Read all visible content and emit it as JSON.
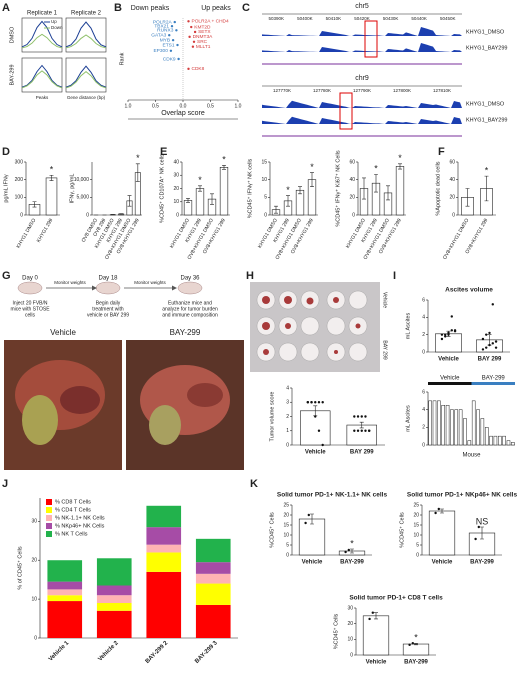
{
  "panel_labels": [
    "A",
    "B",
    "C",
    "D",
    "E",
    "F",
    "G",
    "H",
    "I",
    "J",
    "K"
  ],
  "genome": [
    {
      "chrom": "chr5",
      "coords": [
        "50390K",
        "50400K",
        "50410K",
        "50420K",
        "50430K",
        "50440K",
        "50450K"
      ],
      "samples": [
        "KHYG1_DMSO",
        "KHYG1_BAY299"
      ]
    },
    {
      "chrom": "chr9",
      "coords": [
        "127770K",
        "127780K",
        "127790K",
        "127800K",
        "127810K"
      ],
      "samples": [
        "KHYG1_DMSO",
        "KHYG1_BAY299"
      ]
    }
  ],
  "timeline": {
    "days": [
      "Day 0",
      "Day 18",
      "Day 36"
    ],
    "steps": [
      "Monitor weights",
      "Monitor weights"
    ],
    "notes": [
      [
        "Inject 20 FVB/N",
        "mice with STOSE",
        "cells"
      ],
      [
        "Begin daily",
        "treatment with",
        "vehicle or BAY 299"
      ],
      [
        "Euthanize mice and",
        "analyze for tumor burden",
        "and immune composition"
      ]
    ],
    "photos": [
      "Vehicle",
      "BAY-299"
    ]
  },
  "plate": {
    "labels": [
      "Vehicle",
      "BAY 299"
    ]
  },
  "chart_data": [
    {
      "type": "profile",
      "title": "Replicate 1",
      "row_label": "DMSO",
      "x": [
        -2,
        -1.5,
        -1,
        -0.5,
        0,
        0.5,
        1,
        1.5,
        2
      ],
      "xlim": [
        -2,
        2
      ],
      "ylim": [
        0,
        1
      ],
      "series": [
        {
          "name": "Up",
          "color": "#1c3f94",
          "values": [
            0.15,
            0.22,
            0.4,
            0.72,
            0.9,
            0.72,
            0.4,
            0.22,
            0.15
          ]
        },
        {
          "name": "Down",
          "color": "#8fc06a",
          "values": [
            0.12,
            0.16,
            0.26,
            0.42,
            0.52,
            0.42,
            0.26,
            0.16,
            0.12
          ]
        }
      ]
    },
    {
      "type": "profile",
      "title": "Replicate 2",
      "x": [
        -2,
        -1.5,
        -1,
        -0.5,
        0,
        0.5,
        1,
        1.5,
        2
      ],
      "xlim": [
        -2,
        2
      ],
      "ylim": [
        0,
        1
      ],
      "series": [
        {
          "color": "#1c3f94",
          "values": [
            0.15,
            0.21,
            0.38,
            0.7,
            0.88,
            0.7,
            0.38,
            0.21,
            0.15
          ]
        },
        {
          "color": "#8fc06a",
          "values": [
            0.12,
            0.16,
            0.25,
            0.4,
            0.5,
            0.4,
            0.25,
            0.16,
            0.12
          ]
        }
      ]
    },
    {
      "type": "profile",
      "row_label": "BAY-299",
      "xlabel": "Peaks",
      "x": [
        -2,
        -1.5,
        -1,
        -0.5,
        0,
        0.5,
        1,
        1.5,
        2
      ],
      "xlim": [
        -2,
        2
      ],
      "ylim": [
        0,
        1
      ],
      "series": [
        {
          "color": "#1c3f94",
          "values": [
            0.14,
            0.2,
            0.34,
            0.6,
            0.78,
            0.6,
            0.34,
            0.2,
            0.14
          ]
        },
        {
          "color": "#8fc06a",
          "values": [
            0.12,
            0.18,
            0.3,
            0.5,
            0.62,
            0.5,
            0.3,
            0.18,
            0.12
          ]
        }
      ]
    },
    {
      "type": "profile",
      "xlabel": "Gene distance (bp)",
      "x": [
        -2,
        -1.5,
        -1,
        -0.5,
        0,
        0.5,
        1,
        1.5,
        2
      ],
      "xlim": [
        -2,
        2
      ],
      "ylim": [
        0,
        1
      ],
      "series": [
        {
          "color": "#1c3f94",
          "values": [
            0.14,
            0.2,
            0.33,
            0.58,
            0.76,
            0.58,
            0.33,
            0.2,
            0.14
          ]
        },
        {
          "color": "#8fc06a",
          "values": [
            0.12,
            0.17,
            0.29,
            0.48,
            0.6,
            0.48,
            0.29,
            0.17,
            0.12
          ]
        }
      ]
    },
    {
      "type": "scatter-rank",
      "title_left": "Down peaks",
      "title_right": "Up peaks",
      "xlabel": "Overlap score",
      "ylabel": "Rank",
      "xlim": [
        -1,
        1
      ],
      "ylim": [
        100,
        0
      ],
      "xticks": [
        {
          "value": -1,
          "label": "1.0"
        },
        {
          "value": -0.5,
          "label": "0.5"
        },
        {
          "value": 0,
          "label": "0.0"
        },
        {
          "value": 0.5,
          "label": "0.5"
        },
        {
          "value": 1,
          "label": "1.0"
        }
      ],
      "colors": {
        "down": "#3a7fc1",
        "up": "#d43c3c"
      },
      "labels": [
        "POLR2A",
        "TBX21",
        "RUNX3",
        "GATA3",
        "MYB",
        "ETS1",
        "EP300",
        "CDK9",
        "POLR2A + CHD4",
        "KMT2D",
        "SETX",
        "DNMT3A",
        "SRC",
        "MLLT1",
        "CDK8"
      ],
      "x": [
        -0.15,
        -0.2,
        -0.12,
        -0.25,
        -0.18,
        -0.1,
        -0.22,
        -0.08,
        0.1,
        0.15,
        0.22,
        0.12,
        0.2,
        0.18,
        0.1
      ],
      "values": [
        5,
        10,
        15,
        21,
        27,
        33,
        40,
        50,
        4,
        11,
        17,
        23,
        29,
        35,
        62
      ]
    },
    {
      "type": "bar",
      "ylabel": "pg/mL IFNγ",
      "categories": [
        "KHYG1 DMSO",
        "KHYG1 299"
      ],
      "values": [
        60,
        210
      ],
      "errors": [
        15,
        15
      ],
      "color": "#ffffff",
      "ylim": [
        0,
        300
      ],
      "yticks": [
        0,
        100,
        200,
        300
      ],
      "significance": [
        null,
        "*"
      ]
    },
    {
      "type": "bar",
      "ylabel": "IFNγ, pg/mL",
      "categories": [
        "OV8 DMSO",
        "OV8 299",
        "KHYG1 DMSO",
        "KHYG1 299",
        "OV8+KHYG1 DMSO",
        "OV8+KHYG1 299"
      ],
      "values": [
        0,
        0,
        100,
        300,
        4000,
        12000
      ],
      "errors": [
        0,
        0,
        50,
        80,
        1500,
        2500
      ],
      "color": "#ffffff",
      "ylim": [
        0,
        15000
      ],
      "yticks": [
        0,
        {
          "value": 5000,
          "label": "5,000"
        },
        {
          "value": 10000,
          "label": "10,000"
        }
      ],
      "significance": [
        null,
        null,
        null,
        null,
        null,
        "*"
      ]
    },
    {
      "type": "bar",
      "ylabel": "%CD45⁺ CD107A⁺ NK cells",
      "categories": [
        "KHYG1 DMSO",
        "KHYG1 299",
        "OV8+KHYG1 DMSO",
        "OV8+KHYG1 299"
      ],
      "values": [
        11,
        20,
        12,
        36
      ],
      "errors": [
        1.5,
        2,
        4,
        1.5
      ],
      "color": "#ffffff",
      "ylim": [
        0,
        40
      ],
      "yticks": [
        0,
        10,
        20,
        30,
        40
      ],
      "significance": [
        null,
        "*",
        null,
        "*"
      ]
    },
    {
      "type": "bar",
      "ylabel": "%CD45⁺ IFNγ⁺ NK cells",
      "categories": [
        "KHYG1 DMSO",
        "KHYG1 299",
        "OV8+KHYG1 DMSO",
        "OV8+KHYG1 299"
      ],
      "values": [
        1.5,
        4,
        7,
        10
      ],
      "errors": [
        1,
        1.5,
        1,
        2
      ],
      "color": "#ffffff",
      "ylim": [
        0,
        15
      ],
      "yticks": [
        0,
        5,
        10,
        15
      ],
      "significance": [
        null,
        "*",
        null,
        "*"
      ]
    },
    {
      "type": "bar",
      "ylabel": "%CD45⁺ IFNγ⁺ Ki67⁺ NK Cells",
      "categories": [
        "KHYG1 DMSO",
        "KHYG1 299",
        "OV8+KHYG1 DMSO",
        "OV8+KHYG1 299"
      ],
      "values": [
        30,
        36,
        25,
        55
      ],
      "errors": [
        12,
        10,
        8,
        3
      ],
      "color": "#ffffff",
      "ylim": [
        0,
        60
      ],
      "yticks": [
        0,
        20,
        40,
        60
      ],
      "significance": [
        null,
        "*",
        null,
        "*"
      ]
    },
    {
      "type": "bar",
      "ylabel": "%Apoptotic dead cells",
      "categories": [
        "OV8+KHYG1 DMSO",
        "OV8+KHYG1 299"
      ],
      "values": [
        20,
        30
      ],
      "errors": [
        10,
        14
      ],
      "color": "#ffffff",
      "ylim": [
        0,
        60
      ],
      "yticks": [
        0,
        20,
        40,
        60
      ],
      "significance": [
        null,
        "*"
      ]
    },
    {
      "type": "bar",
      "ylabel": "Tumor volume score",
      "categories": [
        "Vehicle",
        "BAY 299"
      ],
      "values": [
        2.4,
        1.4
      ],
      "errors": [
        0.35,
        0.2
      ],
      "color": "#ffffff",
      "ylim": [
        0,
        4
      ],
      "yticks": [
        0,
        1,
        2,
        3,
        4
      ],
      "points": [
        [
          3,
          3,
          3,
          3,
          3,
          3,
          3,
          2,
          1,
          0
        ],
        [
          2,
          2,
          2,
          2,
          1,
          1,
          1,
          1,
          1,
          1
        ]
      ]
    },
    {
      "type": "bar",
      "title": "Ascites volume",
      "ylabel": "mL Ascites",
      "categories": [
        "Vehicle",
        "BAY 299"
      ],
      "values": [
        2.1,
        1.4
      ],
      "errors": [
        0.3,
        0.6
      ],
      "color": "#ffffff",
      "ylim": [
        0,
        6
      ],
      "yticks": [
        0,
        2,
        4,
        6
      ],
      "points": [
        [
          1.5,
          2,
          2,
          2.5,
          2.5,
          2,
          1.8,
          2.2,
          4.1,
          2.4
        ],
        [
          0.3,
          0.5,
          0.8,
          1,
          1.2,
          1.5,
          2,
          2.2,
          5.5,
          0.5
        ]
      ]
    },
    {
      "type": "bar-groups",
      "ylabel": "mL Ascites",
      "xlabel": "Mouse",
      "ylim": [
        0,
        6
      ],
      "yticks": [
        0,
        2,
        4,
        6
      ],
      "series": [
        {
          "name": "Vehicle",
          "color": "#111111",
          "values": [
            5,
            5,
            5,
            4.5,
            4.5,
            4,
            4,
            4,
            3,
            0.5
          ]
        },
        {
          "name": "BAY-299",
          "color": "#3a7fc1",
          "values": [
            5,
            4,
            3,
            2,
            1,
            1,
            1,
            1,
            0.5,
            0.3
          ]
        }
      ]
    },
    {
      "type": "stacked",
      "ylabel": "% of CD45⁺ Cells",
      "categories": [
        "Vehicle 1",
        "Vehicle 2",
        "BAY-299 2",
        "BAY-299 3"
      ],
      "ylim": [
        0,
        36
      ],
      "yticks": [
        0,
        10,
        20,
        30
      ],
      "series": [
        {
          "name": "% CD8 T Cells",
          "color": "#ff0000",
          "values": [
            9.5,
            7,
            17,
            8.5
          ]
        },
        {
          "name": "% CD4 T Cells",
          "color": "#ffff00",
          "values": [
            1.5,
            2,
            5,
            5.5
          ]
        },
        {
          "name": "% NK-1.1+ NK Cells",
          "color": "#ffb3b3",
          "values": [
            1.5,
            2,
            2,
            2.5
          ]
        },
        {
          "name": "% NKp46+ NK Cells",
          "color": "#a64ca6",
          "values": [
            2,
            2.5,
            4.5,
            3
          ]
        },
        {
          "name": "% NK T Cells",
          "color": "#22b24c",
          "values": [
            5.5,
            7,
            5.5,
            6
          ]
        }
      ]
    },
    {
      "type": "bar",
      "title": "Solid tumor PD-1+ NK-1.1+ NK cells",
      "ylabel": "%CD45⁺ Cells",
      "categories": [
        "Vehicle",
        "BAY-299"
      ],
      "values": [
        18,
        2
      ],
      "errors": [
        2.5,
        1
      ],
      "color": "#ffffff",
      "ylim": [
        0,
        25
      ],
      "yticks": [
        0,
        5,
        10,
        15,
        20,
        25
      ],
      "significance": [
        null,
        "*"
      ],
      "points": [
        [
          16,
          20
        ],
        [
          1.5,
          2.5
        ]
      ]
    },
    {
      "type": "bar",
      "title": "Solid tumor PD-1+ NKp46+ NK cells",
      "ylabel": "%CD45⁺ Cells",
      "categories": [
        "Vehicle",
        "BAY-299"
      ],
      "values": [
        22,
        11
      ],
      "errors": [
        1,
        3
      ],
      "color": "#ffffff",
      "ylim": [
        0,
        25
      ],
      "yticks": [
        0,
        5,
        10,
        15,
        20,
        25
      ],
      "significance": [
        null,
        "NS"
      ],
      "points": [
        [
          21,
          23
        ],
        [
          8,
          14
        ]
      ]
    },
    {
      "type": "bar",
      "title": "Solid tumor PD-1+ CD8 T cells",
      "ylabel": "%CD45⁺ Cells",
      "categories": [
        "Vehicle",
        "BAY-299"
      ],
      "values": [
        25,
        7
      ],
      "errors": [
        2,
        0.5
      ],
      "color": "#ffffff",
      "ylim": [
        0,
        30
      ],
      "yticks": [
        0,
        10,
        20,
        30
      ],
      "significance": [
        null,
        "*"
      ],
      "points": [
        [
          23,
          27
        ],
        [
          6.5,
          7.5
        ]
      ]
    }
  ]
}
